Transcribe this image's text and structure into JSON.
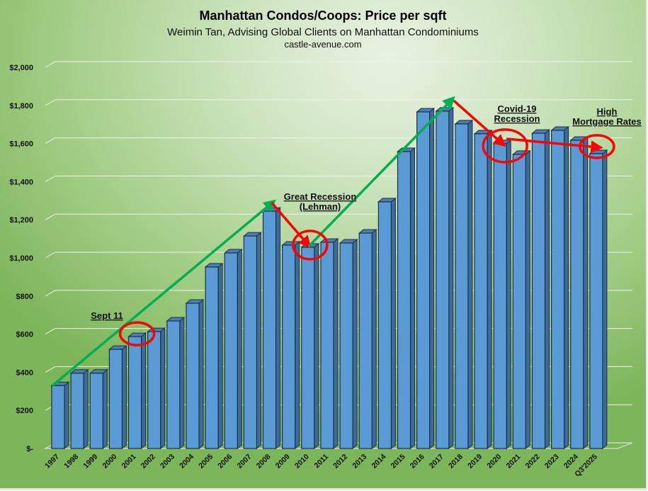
{
  "chart_data": {
    "type": "bar",
    "style": "3d-column",
    "title": "Manhattan Condos/Coops: Price per sqft",
    "subtitle": "Weimin Tan, Advising Global Clients on Manhattan Condominiums",
    "source": "castle-avenue.com",
    "xlabel": "",
    "ylabel": "",
    "ylim": [
      0,
      2000
    ],
    "grid": true,
    "legend": "none",
    "yticks": [
      0,
      200,
      400,
      600,
      800,
      1000,
      1200,
      1400,
      1600,
      1800,
      2000
    ],
    "ytick_labels": [
      "$-",
      "$200",
      "$400",
      "$600",
      "$800",
      "$1,000",
      "$1,200",
      "$1,400",
      "$1,600",
      "$1,800",
      "$2,000"
    ],
    "categories": [
      "1997",
      "1998",
      "1999",
      "2000",
      "2001",
      "2002",
      "2003",
      "2004",
      "2005",
      "2006",
      "2007",
      "2008",
      "2009",
      "2010",
      "2011",
      "2012",
      "2013",
      "2014",
      "2015",
      "2016",
      "2017",
      "2018",
      "2019",
      "2020",
      "2021",
      "2022",
      "2023",
      "2024",
      "Q3'2025"
    ],
    "series": [
      {
        "name": "Price per sqft",
        "color": "#5b9bd5",
        "values": [
          330,
          395,
          395,
          520,
          587,
          613,
          669,
          762,
          952,
          1026,
          1115,
          1245,
          1067,
          1056,
          1082,
          1078,
          1130,
          1294,
          1558,
          1766,
          1770,
          1703,
          1651,
          1599,
          1543,
          1654,
          1669,
          1617,
          1547
        ]
      }
    ],
    "annotations": [
      {
        "id": "sept11",
        "label": [
          "Sept 11"
        ],
        "category": "2001",
        "circled": true
      },
      {
        "id": "great-recession",
        "label": [
          "Great Recession",
          "(Lehman)"
        ],
        "category": "2010",
        "circled": true
      },
      {
        "id": "covid",
        "label": [
          "Covid-19",
          "Recession"
        ],
        "category": "2020",
        "circled": true
      },
      {
        "id": "high-rates",
        "label": [
          "High",
          "Mortgage Rates"
        ],
        "category": "Q3'2025",
        "circled": true
      }
    ],
    "trend_arrows": [
      {
        "color": "#00b050",
        "from": "1997",
        "to": "2008",
        "direction": "up"
      },
      {
        "color": "#ff0000",
        "from": "2008",
        "to": "2010",
        "direction": "down"
      },
      {
        "color": "#00b050",
        "from": "2010",
        "to": "2017",
        "direction": "up"
      },
      {
        "color": "#ff0000",
        "from": "2017",
        "to": "2020",
        "direction": "down"
      },
      {
        "color": "#ff0000",
        "from": "2020",
        "to": "Q3'2025",
        "direction": "flat"
      }
    ]
  }
}
